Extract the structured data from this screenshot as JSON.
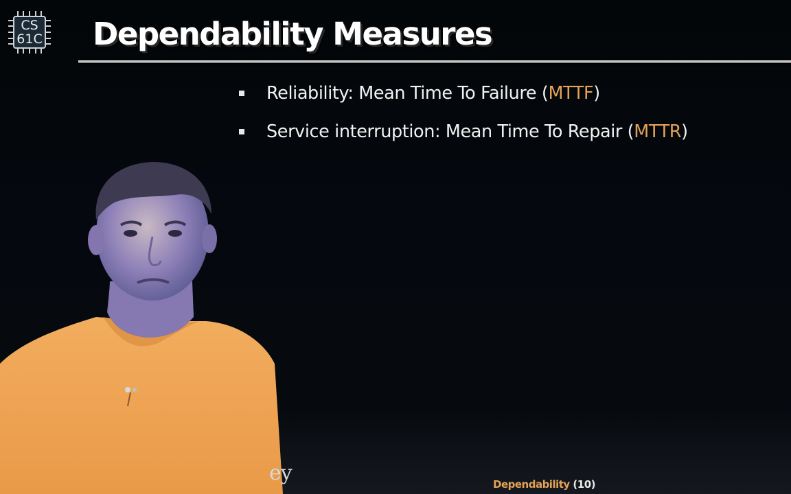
{
  "logo": {
    "line1": "CS",
    "line2": "61C",
    "icon": "chip-icon"
  },
  "title": "Dependability Measures",
  "bullets": [
    {
      "prefix": "Reliability: Mean Time To Failure (",
      "accent": "MTTF",
      "suffix": ")"
    },
    {
      "prefix": "Service interruption: Mean Time To Repair (",
      "accent": "MTTR",
      "suffix": ")"
    }
  ],
  "footer": {
    "left_text": "ey",
    "topic": "Dependability",
    "page": "(10)"
  },
  "colors": {
    "accent": "#e3a256",
    "background": "#05090f",
    "text": "#f2f2f2",
    "shirt": "#efa859"
  }
}
